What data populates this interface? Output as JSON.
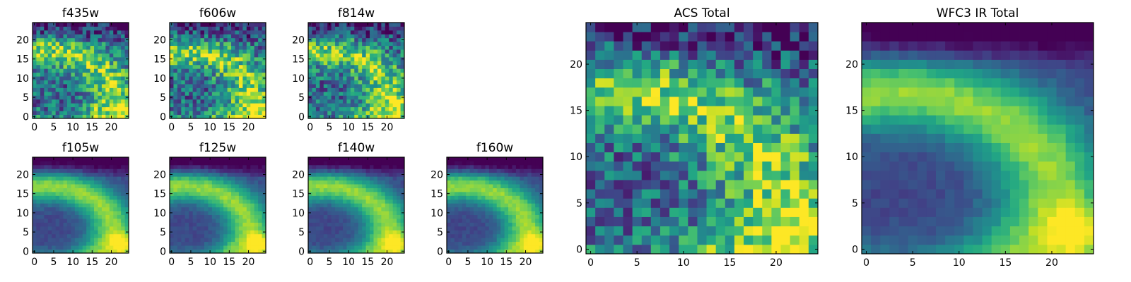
{
  "figure": {
    "colormap": "viridis",
    "grid": false
  },
  "chart_data": [
    {
      "type": "heatmap",
      "title": "f435w",
      "pattern": "noisy-arc",
      "x_range": [
        0,
        24
      ],
      "y_range": [
        0,
        24
      ],
      "x_ticks": [
        "0",
        "5",
        "10",
        "15",
        "20"
      ],
      "y_ticks": [
        "0",
        "5",
        "10",
        "15",
        "20"
      ]
    },
    {
      "type": "heatmap",
      "title": "f606w",
      "pattern": "noisy-arc",
      "x_range": [
        0,
        24
      ],
      "y_range": [
        0,
        24
      ],
      "x_ticks": [
        "0",
        "5",
        "10",
        "15",
        "20"
      ],
      "y_ticks": [
        "0",
        "5",
        "10",
        "15",
        "20"
      ]
    },
    {
      "type": "heatmap",
      "title": "f814w",
      "pattern": "noisy-arc",
      "x_range": [
        0,
        24
      ],
      "y_range": [
        0,
        24
      ],
      "x_ticks": [
        "0",
        "5",
        "10",
        "15",
        "20"
      ],
      "y_ticks": [
        "0",
        "5",
        "10",
        "15",
        "20"
      ]
    },
    {
      "type": "heatmap",
      "title": "f105w",
      "pattern": "smooth-arc",
      "x_range": [
        0,
        24
      ],
      "y_range": [
        0,
        24
      ],
      "x_ticks": [
        "0",
        "5",
        "10",
        "15",
        "20"
      ],
      "y_ticks": [
        "0",
        "5",
        "10",
        "15",
        "20"
      ]
    },
    {
      "type": "heatmap",
      "title": "f125w",
      "pattern": "smooth-arc",
      "x_range": [
        0,
        24
      ],
      "y_range": [
        0,
        24
      ],
      "x_ticks": [
        "0",
        "5",
        "10",
        "15",
        "20"
      ],
      "y_ticks": [
        "0",
        "5",
        "10",
        "15",
        "20"
      ]
    },
    {
      "type": "heatmap",
      "title": "f140w",
      "pattern": "smooth-arc",
      "x_range": [
        0,
        24
      ],
      "y_range": [
        0,
        24
      ],
      "x_ticks": [
        "0",
        "5",
        "10",
        "15",
        "20"
      ],
      "y_ticks": [
        "0",
        "5",
        "10",
        "15",
        "20"
      ]
    },
    {
      "type": "heatmap",
      "title": "f160w",
      "pattern": "smooth-arc",
      "x_range": [
        0,
        24
      ],
      "y_range": [
        0,
        24
      ],
      "x_ticks": [
        "0",
        "5",
        "10",
        "15",
        "20"
      ],
      "y_ticks": [
        "0",
        "5",
        "10",
        "15",
        "20"
      ]
    },
    {
      "type": "heatmap",
      "title": "ACS Total",
      "pattern": "noisy-arc",
      "x_range": [
        0,
        24
      ],
      "y_range": [
        0,
        24
      ],
      "x_ticks": [
        "0",
        "5",
        "10",
        "15",
        "20"
      ],
      "y_ticks": [
        "0",
        "5",
        "10",
        "15",
        "20"
      ]
    },
    {
      "type": "heatmap",
      "title": "WFC3 IR Total",
      "pattern": "smooth-arc",
      "x_range": [
        0,
        24
      ],
      "y_range": [
        0,
        24
      ],
      "x_ticks": [
        "0",
        "5",
        "10",
        "15",
        "20"
      ],
      "y_ticks": [
        "0",
        "5",
        "10",
        "15",
        "20"
      ]
    }
  ]
}
